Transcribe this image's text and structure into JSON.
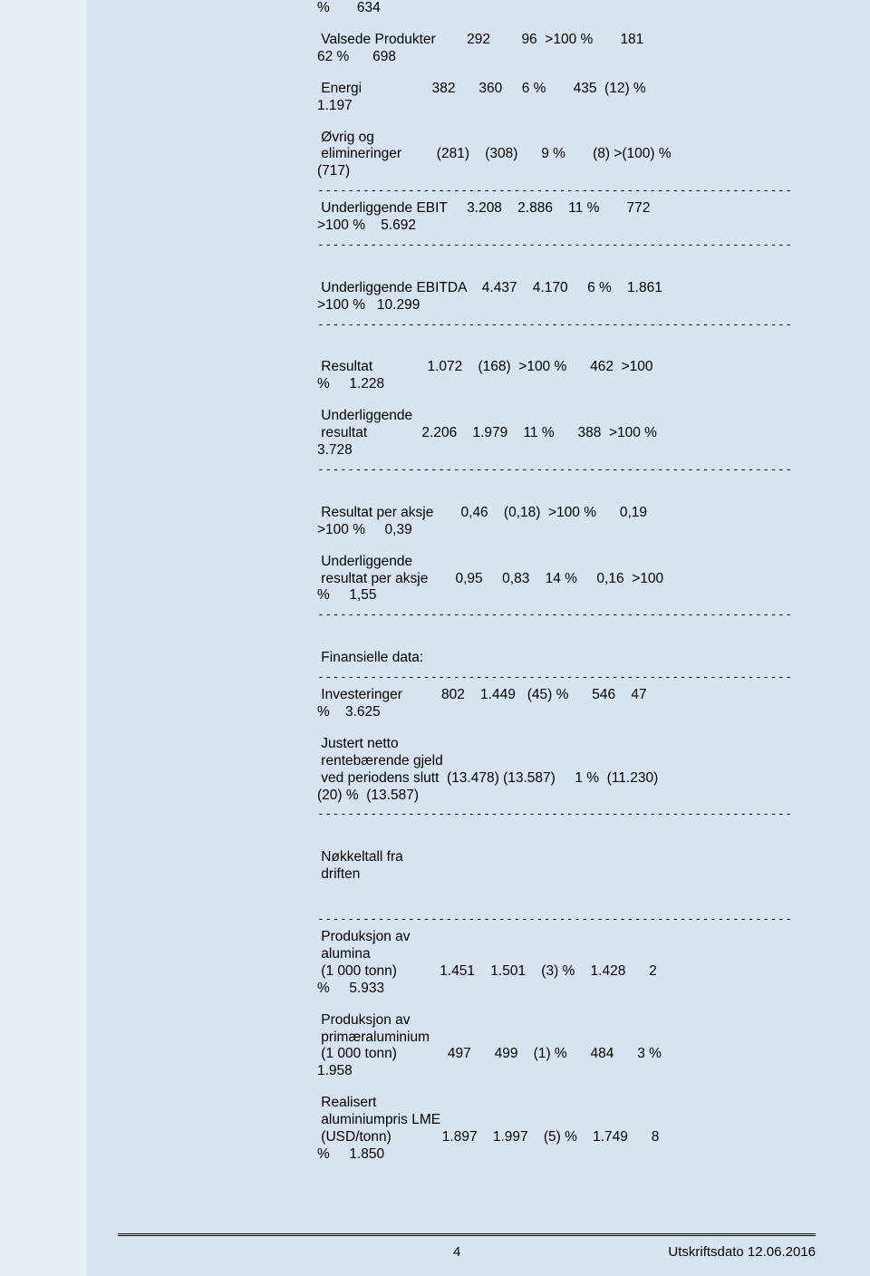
{
  "lines": [
    "%       634",
    "",
    " Valsede Produkter        292        96  >100 %       181",
    "62 %      698",
    "",
    " Energi                  382      360     6 %       435  (12) %",
    "1.197",
    "",
    " Øvrig og",
    " elimineringer         (281)    (308)      9 %       (8) >(100) %",
    "(717)",
    "DASHED",
    " Underliggende EBIT     3.208    2.886    11 %       772",
    ">100 %    5.692",
    "DASHED",
    "",
    "",
    " Underliggende EBITDA    4.437    4.170     6 %    1.861",
    ">100 %   10.299",
    "DASHED",
    "",
    "",
    " Resultat              1.072    (168)  >100 %      462  >100",
    "%     1.228",
    "",
    " Underliggende",
    " resultat              2.206    1.979    11 %      388  >100 %",
    "3.728",
    "DASHED",
    "",
    "",
    " Resultat per aksje       0,46    (0,18)  >100 %      0,19",
    ">100 %     0,39",
    "",
    " Underliggende",
    " resultat per aksje       0,95     0,83    14 %     0,16  >100",
    "%     1,55",
    "DASHED",
    "",
    "",
    " Finansielle data:",
    "DASHED",
    " Investeringer          802    1.449   (45) %      546    47",
    "%    3.625",
    "",
    " Justert netto",
    " rentebærende gjeld",
    " ved periodens slutt  (13.478) (13.587)     1 %  (11.230)",
    "(20) %  (13.587)",
    "DASHED",
    "",
    "",
    " Nøkkeltall fra",
    " driften",
    "",
    "",
    "DASHED",
    " Produksjon av",
    " alumina",
    " (1 000 tonn)           1.451    1.501    (3) %    1.428      2",
    "%     5.933",
    "",
    " Produksjon av",
    " primæraluminium",
    " (1 000 tonn)             497      499    (1) %      484      3 %",
    "1.958",
    "",
    " Realisert",
    " aluminiumpris LME",
    " (USD/tonn)             1.897    1.997    (5) %    1.749      8",
    "%     1.850"
  ],
  "dashed": "-------------------------------------------------------------------------------",
  "page_number": "4",
  "footer_date": "Utskriftsdato 12.06.2016"
}
